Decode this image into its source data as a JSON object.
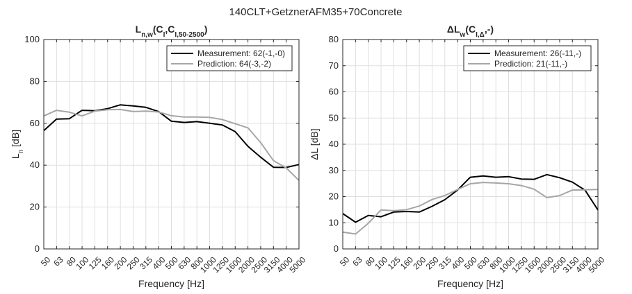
{
  "figure_title": "140CLT+GetznerAFM35+70Concrete",
  "chart_data": [
    {
      "type": "line",
      "title_main": "L",
      "title_sub": "n,w",
      "title_rest": "(C",
      "title_sub2": "I",
      "title_rest2": ",C",
      "title_sub3": "I,50-2500",
      "title_end": ")",
      "xlabel": "Frequency [Hz]",
      "ylabel_main": "L",
      "ylabel_sub": "n",
      "ylabel_rest": " [dB]",
      "categories": [
        "50",
        "63",
        "80",
        "100",
        "125",
        "160",
        "200",
        "250",
        "315",
        "400",
        "500",
        "630",
        "800",
        "1000",
        "1250",
        "1600",
        "2000",
        "2500",
        "3150",
        "4000",
        "5000"
      ],
      "ylim": [
        0,
        100
      ],
      "yticks": [
        0,
        20,
        40,
        60,
        80,
        100
      ],
      "grid": true,
      "legend_position": "top-right",
      "series": [
        {
          "name": "Measurement: 62(-1,-0)",
          "color": "#000000",
          "values": [
            56.5,
            62,
            62.2,
            66.2,
            66,
            67,
            68.8,
            68.3,
            67.6,
            65.6,
            61,
            60.4,
            60.8,
            60,
            59.2,
            56,
            49,
            43.8,
            39,
            38.9,
            40.3
          ]
        },
        {
          "name": "Prediction: 64(-3,-2)",
          "color": "#a6a6a6",
          "values": [
            63.5,
            66.2,
            65.3,
            63.5,
            65.8,
            66.5,
            66.6,
            65.6,
            65.8,
            65.4,
            63.6,
            63,
            63,
            62.8,
            61.8,
            59.8,
            57.8,
            50.8,
            42.2,
            38.7,
            32.7
          ]
        }
      ]
    },
    {
      "type": "line",
      "title_main": "ΔL",
      "title_sub": "w",
      "title_rest": "(C",
      "title_sub2": "I,Δ",
      "title_rest2": ",-)",
      "title_sub3": "",
      "title_end": "",
      "xlabel": "Frequency [Hz]",
      "ylabel_main": "ΔL [dB]",
      "ylabel_sub": "",
      "ylabel_rest": "",
      "categories": [
        "50",
        "63",
        "80",
        "100",
        "125",
        "160",
        "200",
        "250",
        "315",
        "400",
        "500",
        "630",
        "800",
        "1000",
        "1250",
        "1600",
        "2000",
        "2500",
        "3150",
        "4000",
        "5000"
      ],
      "ylim": [
        0,
        80
      ],
      "yticks": [
        0,
        10,
        20,
        30,
        40,
        50,
        60,
        70,
        80
      ],
      "grid": true,
      "legend_position": "top-right",
      "series": [
        {
          "name": "Measurement: 26(-11,-)",
          "color": "#000000",
          "values": [
            13.5,
            10.2,
            12.8,
            12.3,
            14.1,
            14.3,
            14.1,
            16.3,
            18.8,
            22.5,
            27.4,
            27.9,
            27.4,
            27.6,
            26.7,
            26.6,
            28.4,
            27.2,
            25.5,
            22.4,
            14.9
          ]
        },
        {
          "name": "Prediction: 21(-11,-)",
          "color": "#a6a6a6",
          "values": [
            6.4,
            5.7,
            9.8,
            14.9,
            14.6,
            15,
            16.4,
            18.9,
            20.4,
            22.7,
            24.9,
            25.4,
            25.2,
            24.9,
            24.2,
            22.8,
            19.6,
            20.4,
            22.5,
            22.6,
            22.7
          ]
        }
      ]
    }
  ]
}
